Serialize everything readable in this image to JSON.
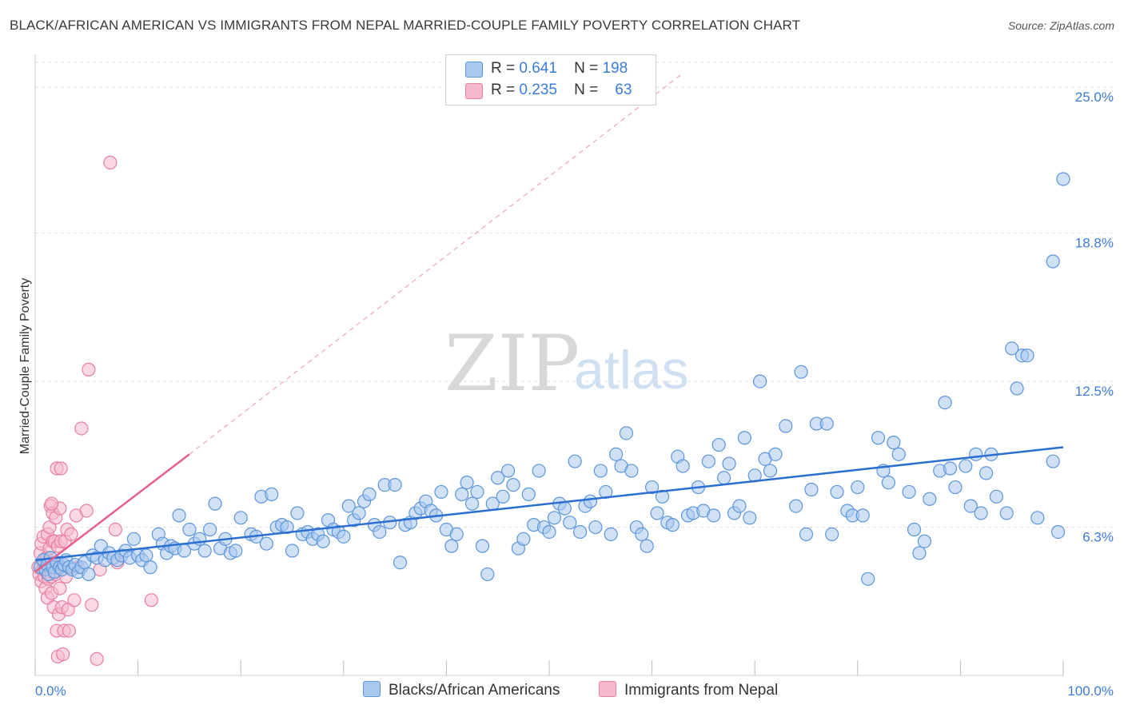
{
  "title": "BLACK/AFRICAN AMERICAN VS IMMIGRANTS FROM NEPAL MARRIED-COUPLE FAMILY POVERTY CORRELATION CHART",
  "source": "Source: ZipAtlas.com",
  "watermark": {
    "zip": "ZIP",
    "atlas": "atlas"
  },
  "legend": {
    "blue": {
      "r_label": "R =",
      "r_value": "0.641",
      "n_label": "N =",
      "n_value": "198"
    },
    "pink": {
      "r_label": "R =",
      "r_value": "0.235",
      "n_label": "N =",
      "n_value": "63"
    }
  },
  "bottom_legend": {
    "blue": "Blacks/African Americans",
    "pink": "Immigrants from Nepal"
  },
  "colors": {
    "blue_fill": "#a9c8ee",
    "blue_stroke": "#5b95dc",
    "blue_line": "#2b6fd1",
    "pink_fill": "#f6b9cc",
    "pink_stroke": "#e87ea0",
    "pink_line": "#e5608c",
    "axis_text": "#3b7dd8",
    "grid": "#dddddd"
  },
  "chart_data": {
    "type": "scatter",
    "title": "BLACK/AFRICAN AMERICAN VS IMMIGRANTS FROM NEPAL MARRIED-COUPLE FAMILY POVERTY CORRELATION CHART",
    "xlabel": "",
    "ylabel": "Married-Couple Family Poverty",
    "xlim": [
      0,
      100
    ],
    "ylim": [
      0,
      26.4
    ],
    "x_tick_labels": [
      "0.0%",
      "100.0%"
    ],
    "y_ticks": [
      6.3,
      12.5,
      18.8,
      25.0
    ],
    "y_tick_labels": [
      "6.3%",
      "12.5%",
      "18.8%",
      "25.0%"
    ],
    "series": [
      {
        "name": "Blacks/African Americans",
        "R": 0.641,
        "N": 198,
        "trend": {
          "x": [
            0,
            100
          ],
          "y": [
            4.9,
            9.7
          ]
        },
        "points": [
          [
            0.5,
            4.6
          ],
          [
            0.8,
            4.9
          ],
          [
            1.0,
            4.5
          ],
          [
            1.2,
            4.7
          ],
          [
            1.3,
            4.3
          ],
          [
            1.5,
            5.0
          ],
          [
            1.7,
            4.6
          ],
          [
            1.9,
            4.4
          ],
          [
            2.1,
            4.8
          ],
          [
            2.4,
            4.6
          ],
          [
            2.6,
            4.5
          ],
          [
            2.8,
            4.7
          ],
          [
            3.0,
            4.9
          ],
          [
            3.3,
            4.6
          ],
          [
            3.6,
            4.5
          ],
          [
            3.9,
            4.7
          ],
          [
            4.2,
            4.4
          ],
          [
            4.5,
            4.6
          ],
          [
            4.8,
            4.8
          ],
          [
            5.2,
            4.3
          ],
          [
            5.6,
            5.1
          ],
          [
            6.0,
            5.0
          ],
          [
            6.4,
            5.5
          ],
          [
            6.8,
            4.9
          ],
          [
            7.2,
            5.2
          ],
          [
            7.6,
            5.0
          ],
          [
            8.0,
            4.9
          ],
          [
            8.4,
            5.1
          ],
          [
            8.8,
            5.3
          ],
          [
            9.2,
            5.0
          ],
          [
            9.6,
            5.8
          ],
          [
            10.0,
            5.1
          ],
          [
            10.4,
            4.9
          ],
          [
            10.8,
            5.1
          ],
          [
            11.2,
            4.6
          ],
          [
            12.0,
            6.0
          ],
          [
            12.4,
            5.6
          ],
          [
            12.8,
            5.2
          ],
          [
            13.2,
            5.5
          ],
          [
            13.6,
            5.4
          ],
          [
            14.0,
            6.8
          ],
          [
            14.5,
            5.3
          ],
          [
            15.0,
            6.2
          ],
          [
            15.5,
            5.6
          ],
          [
            16.0,
            5.8
          ],
          [
            16.5,
            5.3
          ],
          [
            17.0,
            6.2
          ],
          [
            17.5,
            7.3
          ],
          [
            18.0,
            5.4
          ],
          [
            18.5,
            5.8
          ],
          [
            19.0,
            5.2
          ],
          [
            19.5,
            5.3
          ],
          [
            20.0,
            6.7
          ],
          [
            21.0,
            6.0
          ],
          [
            21.5,
            5.9
          ],
          [
            22.0,
            7.6
          ],
          [
            22.5,
            5.6
          ],
          [
            23.0,
            7.7
          ],
          [
            23.5,
            6.3
          ],
          [
            24.0,
            6.4
          ],
          [
            24.5,
            6.3
          ],
          [
            25.0,
            5.3
          ],
          [
            25.5,
            6.9
          ],
          [
            26.0,
            6.0
          ],
          [
            26.5,
            6.1
          ],
          [
            27.0,
            5.8
          ],
          [
            27.5,
            6.0
          ],
          [
            28.0,
            5.7
          ],
          [
            28.5,
            6.6
          ],
          [
            29.0,
            6.2
          ],
          [
            29.5,
            6.1
          ],
          [
            30.0,
            5.9
          ],
          [
            30.5,
            7.2
          ],
          [
            31.0,
            6.6
          ],
          [
            31.5,
            6.9
          ],
          [
            32.0,
            7.4
          ],
          [
            32.5,
            7.7
          ],
          [
            33.0,
            6.4
          ],
          [
            33.5,
            6.1
          ],
          [
            34.0,
            8.1
          ],
          [
            34.5,
            6.5
          ],
          [
            35.0,
            8.1
          ],
          [
            35.5,
            4.8
          ],
          [
            36.0,
            6.4
          ],
          [
            36.5,
            6.5
          ],
          [
            37.0,
            6.9
          ],
          [
            37.5,
            7.1
          ],
          [
            38.0,
            7.4
          ],
          [
            38.5,
            7.0
          ],
          [
            39.0,
            6.8
          ],
          [
            39.5,
            7.8
          ],
          [
            40.0,
            6.2
          ],
          [
            40.5,
            5.5
          ],
          [
            41.0,
            6.0
          ],
          [
            41.5,
            7.7
          ],
          [
            42.0,
            8.2
          ],
          [
            42.5,
            7.3
          ],
          [
            43.0,
            7.8
          ],
          [
            43.5,
            5.5
          ],
          [
            44.0,
            4.3
          ],
          [
            44.5,
            7.3
          ],
          [
            45.0,
            8.4
          ],
          [
            45.5,
            7.6
          ],
          [
            46.0,
            8.7
          ],
          [
            46.5,
            8.1
          ],
          [
            47.0,
            5.4
          ],
          [
            47.5,
            5.8
          ],
          [
            48.0,
            7.7
          ],
          [
            48.5,
            6.4
          ],
          [
            49.0,
            8.7
          ],
          [
            49.5,
            6.3
          ],
          [
            50.0,
            6.1
          ],
          [
            50.5,
            6.7
          ],
          [
            51.0,
            7.3
          ],
          [
            51.5,
            7.1
          ],
          [
            52.0,
            6.5
          ],
          [
            52.5,
            9.1
          ],
          [
            53.0,
            6.1
          ],
          [
            53.5,
            7.2
          ],
          [
            54.0,
            7.4
          ],
          [
            54.5,
            6.3
          ],
          [
            55.0,
            8.7
          ],
          [
            55.5,
            7.8
          ],
          [
            56.0,
            6.0
          ],
          [
            56.5,
            9.4
          ],
          [
            57.0,
            8.9
          ],
          [
            57.5,
            10.3
          ],
          [
            58.0,
            8.7
          ],
          [
            58.5,
            6.3
          ],
          [
            59.0,
            6.0
          ],
          [
            59.5,
            5.5
          ],
          [
            60.0,
            8.0
          ],
          [
            60.5,
            6.9
          ],
          [
            61.0,
            7.6
          ],
          [
            61.5,
            6.5
          ],
          [
            62.0,
            6.4
          ],
          [
            62.5,
            9.3
          ],
          [
            63.0,
            8.9
          ],
          [
            63.5,
            6.8
          ],
          [
            64.0,
            6.9
          ],
          [
            64.5,
            8.0
          ],
          [
            65.0,
            7.0
          ],
          [
            65.5,
            9.1
          ],
          [
            66.0,
            6.8
          ],
          [
            66.5,
            9.8
          ],
          [
            67.0,
            8.4
          ],
          [
            67.5,
            9.0
          ],
          [
            68.0,
            6.9
          ],
          [
            68.5,
            7.2
          ],
          [
            69.0,
            10.1
          ],
          [
            69.5,
            6.7
          ],
          [
            70.0,
            8.5
          ],
          [
            70.5,
            12.5
          ],
          [
            71.0,
            9.2
          ],
          [
            71.5,
            8.7
          ],
          [
            72.0,
            9.4
          ],
          [
            73.0,
            10.6
          ],
          [
            74.0,
            7.2
          ],
          [
            74.5,
            12.9
          ],
          [
            75.0,
            6.0
          ],
          [
            75.5,
            7.9
          ],
          [
            76.0,
            10.7
          ],
          [
            77.0,
            10.7
          ],
          [
            77.5,
            6.0
          ],
          [
            78.0,
            7.8
          ],
          [
            79.0,
            7.0
          ],
          [
            79.5,
            6.8
          ],
          [
            80.0,
            8.0
          ],
          [
            80.5,
            6.8
          ],
          [
            81.0,
            4.1
          ],
          [
            82.0,
            10.1
          ],
          [
            82.5,
            8.7
          ],
          [
            83.0,
            8.2
          ],
          [
            83.5,
            9.9
          ],
          [
            84.0,
            9.4
          ],
          [
            85.0,
            7.8
          ],
          [
            85.5,
            6.2
          ],
          [
            86.0,
            5.2
          ],
          [
            86.5,
            5.7
          ],
          [
            87.0,
            7.5
          ],
          [
            88.0,
            8.7
          ],
          [
            88.5,
            11.6
          ],
          [
            89.0,
            8.8
          ],
          [
            89.5,
            8.0
          ],
          [
            90.5,
            8.9
          ],
          [
            91.0,
            7.2
          ],
          [
            91.5,
            9.4
          ],
          [
            92.0,
            6.9
          ],
          [
            92.5,
            8.6
          ],
          [
            93.0,
            9.4
          ],
          [
            93.5,
            7.6
          ],
          [
            94.5,
            6.9
          ],
          [
            95.0,
            13.9
          ],
          [
            95.5,
            12.2
          ],
          [
            96.0,
            13.6
          ],
          [
            96.5,
            13.6
          ],
          [
            97.5,
            6.7
          ],
          [
            99.0,
            9.1
          ],
          [
            99.5,
            6.1
          ],
          [
            99.0,
            17.6
          ],
          [
            100.0,
            21.1
          ]
        ]
      },
      {
        "name": "Immigrants from Nepal",
        "R": 0.235,
        "N": 63,
        "trend": {
          "x": [
            0,
            15
          ],
          "y": [
            4.4,
            9.4
          ]
        },
        "trend_extension": {
          "x": [
            15,
            63
          ],
          "y": [
            9.4,
            25.6
          ]
        },
        "points": [
          [
            0.3,
            4.6
          ],
          [
            0.4,
            4.3
          ],
          [
            0.5,
            5.2
          ],
          [
            0.6,
            5.6
          ],
          [
            0.6,
            4.0
          ],
          [
            0.7,
            4.5
          ],
          [
            0.8,
            4.8
          ],
          [
            0.8,
            5.9
          ],
          [
            0.9,
            4.2
          ],
          [
            1.0,
            4.7
          ],
          [
            1.0,
            3.7
          ],
          [
            1.1,
            4.4
          ],
          [
            1.1,
            5.0
          ],
          [
            1.2,
            6.0
          ],
          [
            1.2,
            3.3
          ],
          [
            1.3,
            4.8
          ],
          [
            1.3,
            4.1
          ],
          [
            1.4,
            5.4
          ],
          [
            1.4,
            6.3
          ],
          [
            1.5,
            4.6
          ],
          [
            1.5,
            7.2
          ],
          [
            1.6,
            4.2
          ],
          [
            1.6,
            3.5
          ],
          [
            1.7,
            5.7
          ],
          [
            1.7,
            6.9
          ],
          [
            1.8,
            2.9
          ],
          [
            1.8,
            4.4
          ],
          [
            1.9,
            5.7
          ],
          [
            2.0,
            6.7
          ],
          [
            2.0,
            4.3
          ],
          [
            2.1,
            8.8
          ],
          [
            2.1,
            1.9
          ],
          [
            2.2,
            5.5
          ],
          [
            2.2,
            0.8
          ],
          [
            2.3,
            4.7
          ],
          [
            2.3,
            2.6
          ],
          [
            2.4,
            7.1
          ],
          [
            2.4,
            3.7
          ],
          [
            2.5,
            8.8
          ],
          [
            2.5,
            5.7
          ],
          [
            2.6,
            2.9
          ],
          [
            2.7,
            0.9
          ],
          [
            2.8,
            1.9
          ],
          [
            2.9,
            5.7
          ],
          [
            3.0,
            4.2
          ],
          [
            3.1,
            6.2
          ],
          [
            3.2,
            2.8
          ],
          [
            3.3,
            1.9
          ],
          [
            3.5,
            6.0
          ],
          [
            3.8,
            3.2
          ],
          [
            4.0,
            6.8
          ],
          [
            4.2,
            4.6
          ],
          [
            4.5,
            10.5
          ],
          [
            5.0,
            7.0
          ],
          [
            5.2,
            13.0
          ],
          [
            5.5,
            3.0
          ],
          [
            6.0,
            0.7
          ],
          [
            6.3,
            4.5
          ],
          [
            7.3,
            21.8
          ],
          [
            7.8,
            6.2
          ],
          [
            8.0,
            4.8
          ],
          [
            11.3,
            3.2
          ],
          [
            1.6,
            7.3
          ]
        ]
      }
    ]
  }
}
